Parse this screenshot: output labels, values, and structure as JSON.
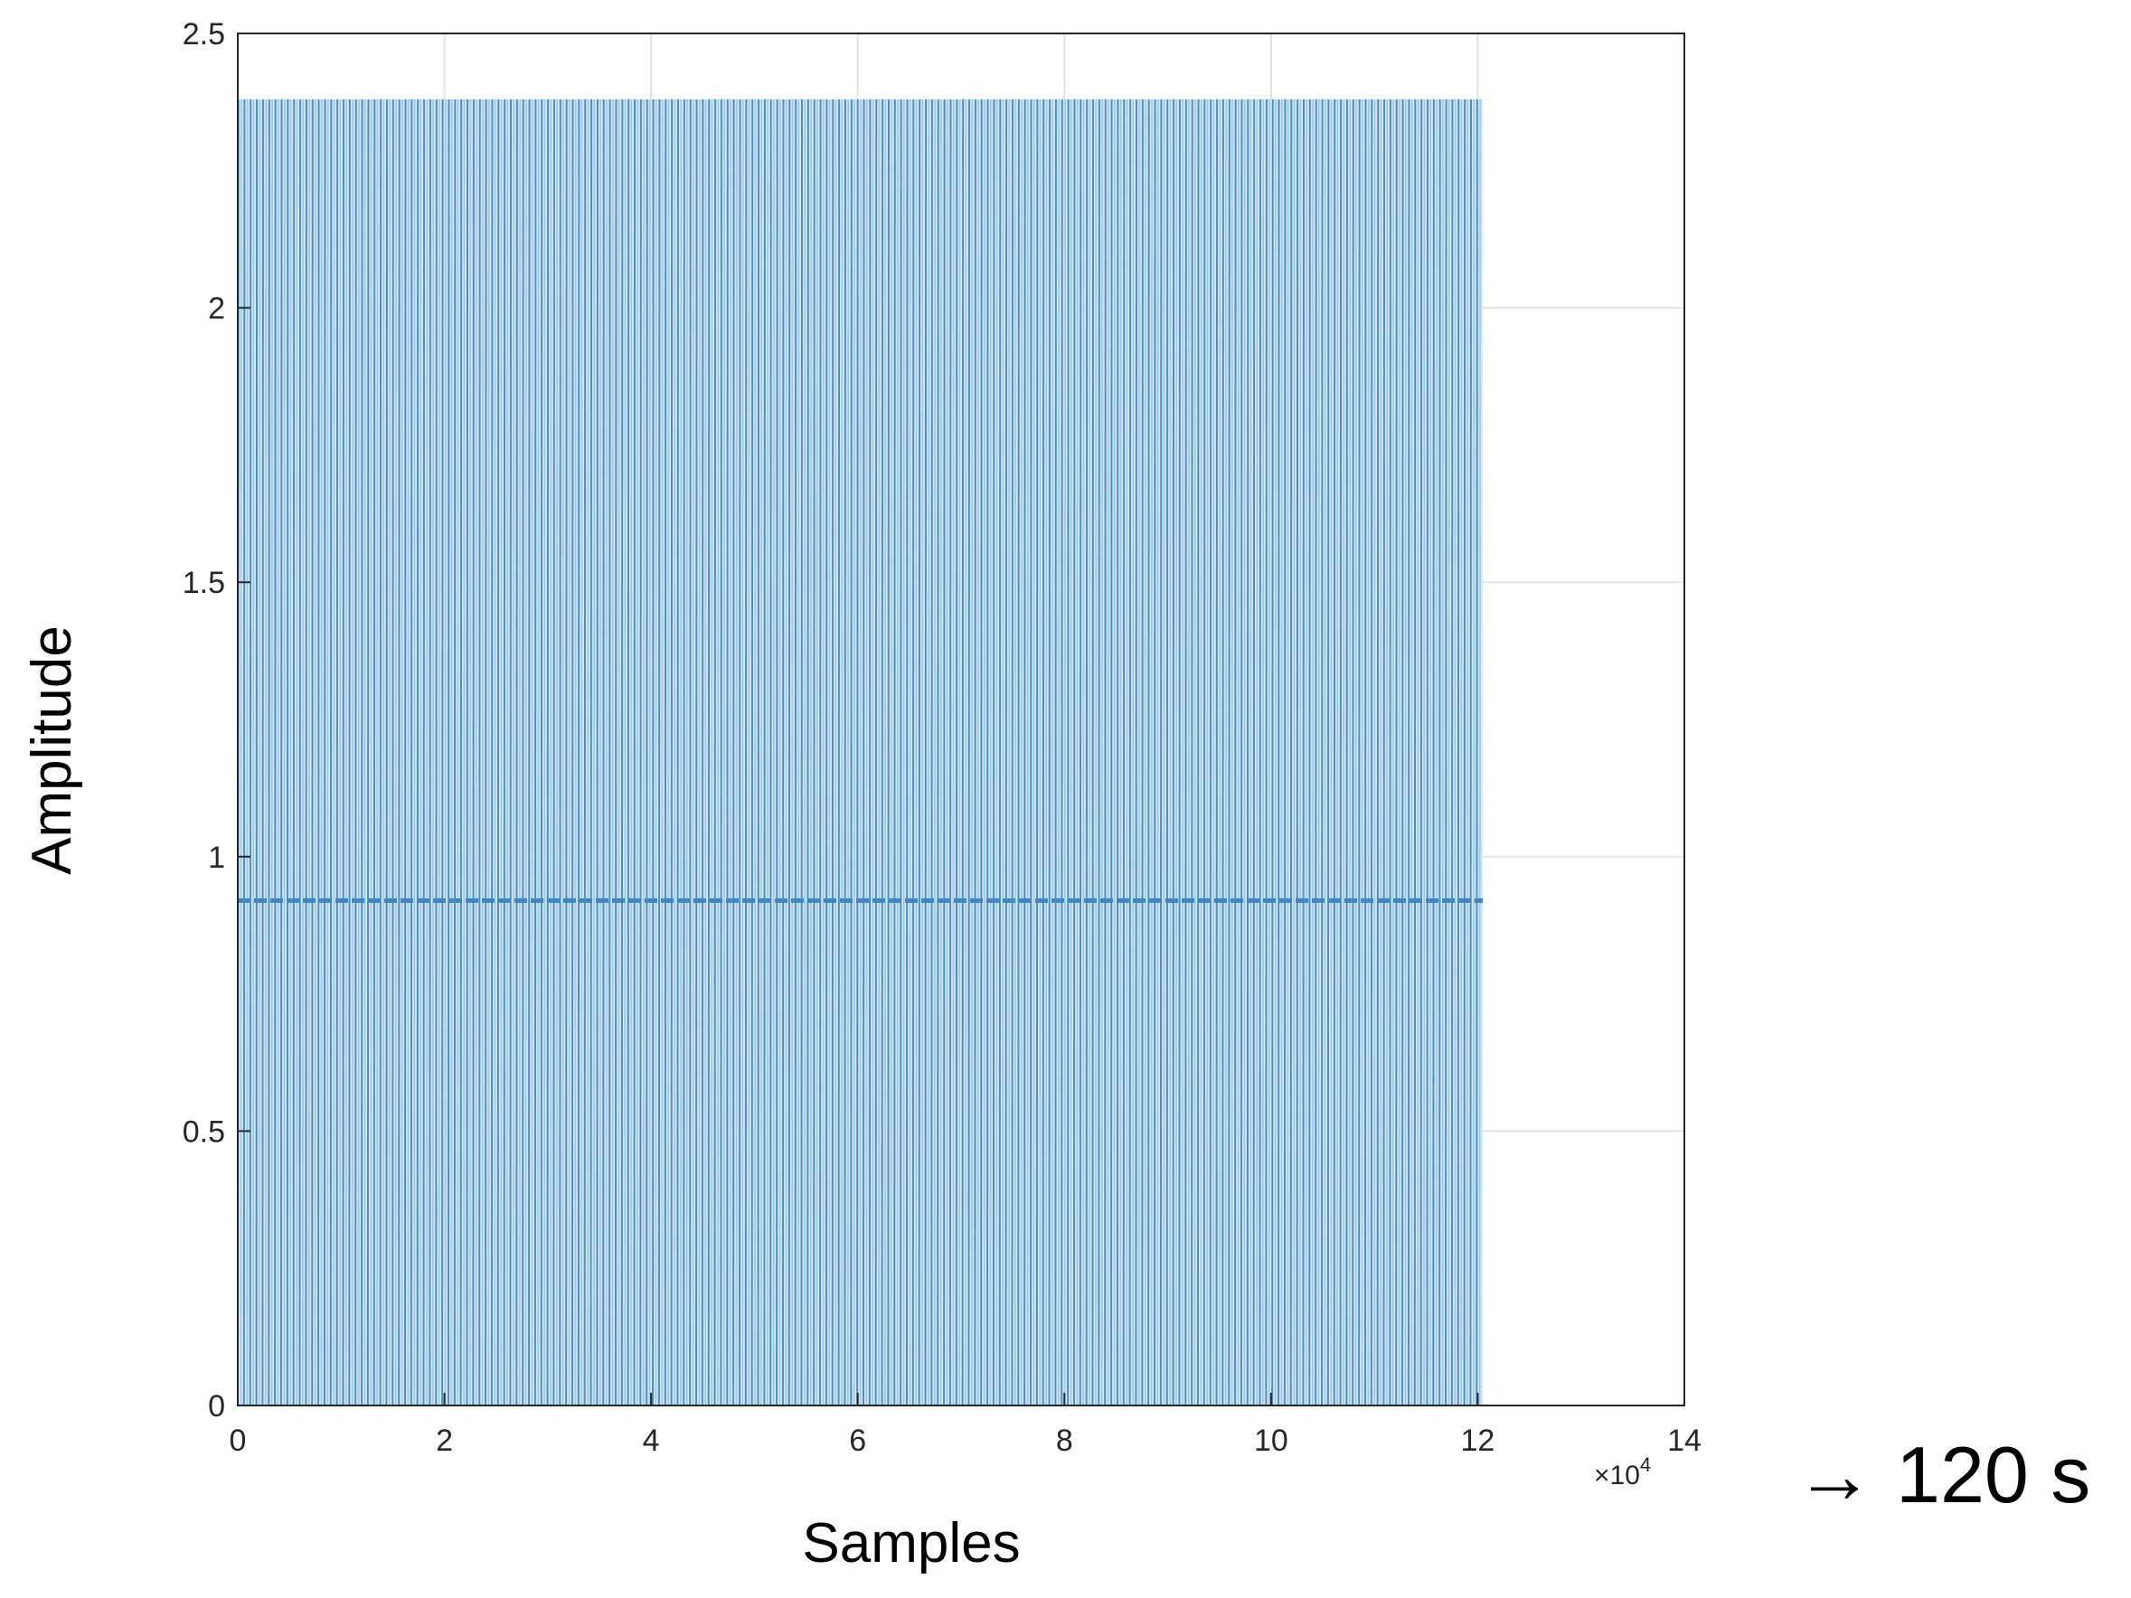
{
  "chart_data": {
    "type": "line",
    "xlabel": "Samples",
    "ylabel": "Amplitude",
    "xlim": [
      0,
      140000
    ],
    "ylim": [
      0,
      2.5
    ],
    "x_ticks": [
      "0",
      "2",
      "4",
      "6",
      "8",
      "10",
      "12",
      "14"
    ],
    "x_tick_values": [
      0,
      20000,
      40000,
      60000,
      80000,
      100000,
      120000,
      140000
    ],
    "x_exponent_base": "×10",
    "x_exponent_power": "4",
    "y_ticks": [
      "0",
      "0.5",
      "1",
      "1.5",
      "2",
      "2.5"
    ],
    "y_tick_values": [
      0,
      0.5,
      1,
      1.5,
      2,
      2.5
    ],
    "grid": true,
    "series": [
      {
        "x_start": 0,
        "x_end": 120500,
        "y_min": 0,
        "y_max": 2.38,
        "y_mid": 0.92,
        "period_samples": 600,
        "color": "#4a90c8"
      }
    ],
    "annotation": {
      "arrow": "→",
      "text": "120 s"
    }
  }
}
